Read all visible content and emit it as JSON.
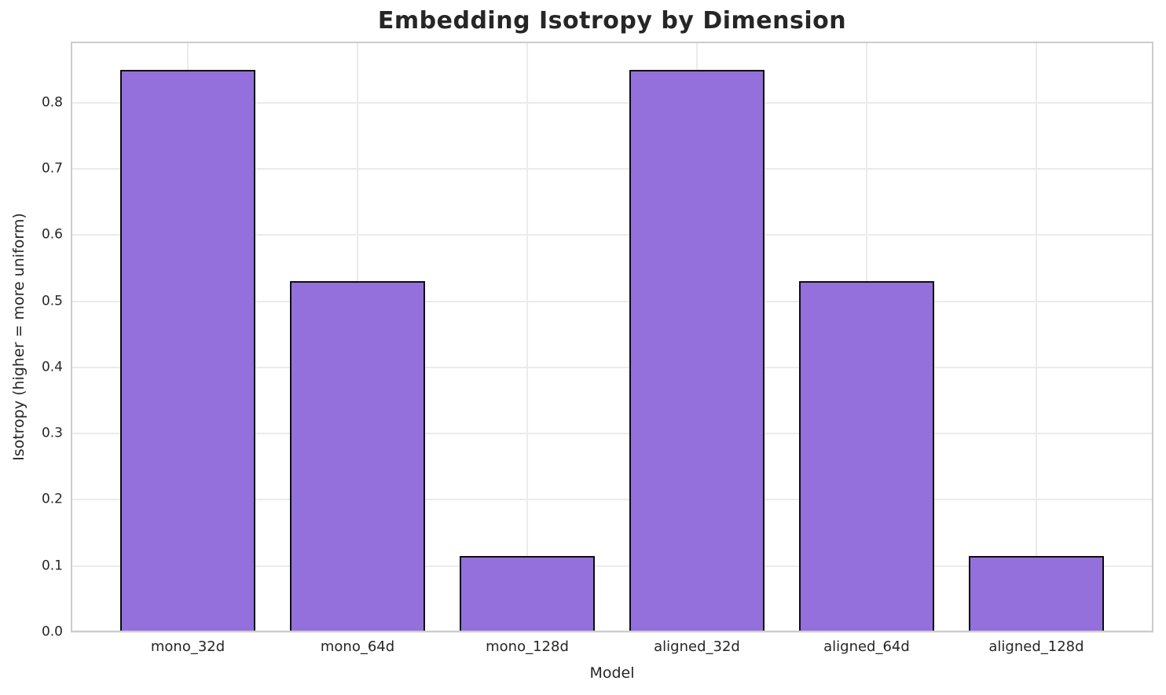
{
  "chart_data": {
    "type": "bar",
    "title": "Embedding Isotropy by Dimension",
    "xlabel": "Model",
    "ylabel": "Isotropy (higher = more uniform)",
    "categories": [
      "mono_32d",
      "mono_64d",
      "mono_128d",
      "aligned_32d",
      "aligned_64d",
      "aligned_128d"
    ],
    "values": [
      0.85,
      0.53,
      0.115,
      0.85,
      0.53,
      0.115
    ],
    "yticks": [
      0.0,
      0.1,
      0.2,
      0.3,
      0.4,
      0.5,
      0.6,
      0.7,
      0.8
    ],
    "ylim": [
      0,
      0.8925
    ],
    "grid": true,
    "legend": false,
    "colors": {
      "bar_fill": "#9370DB",
      "bar_edge": "#0d0d0d",
      "grid_line": "#ebebeb",
      "spine": "#cccccc",
      "text": "#262626",
      "background": "#ffffff"
    }
  }
}
